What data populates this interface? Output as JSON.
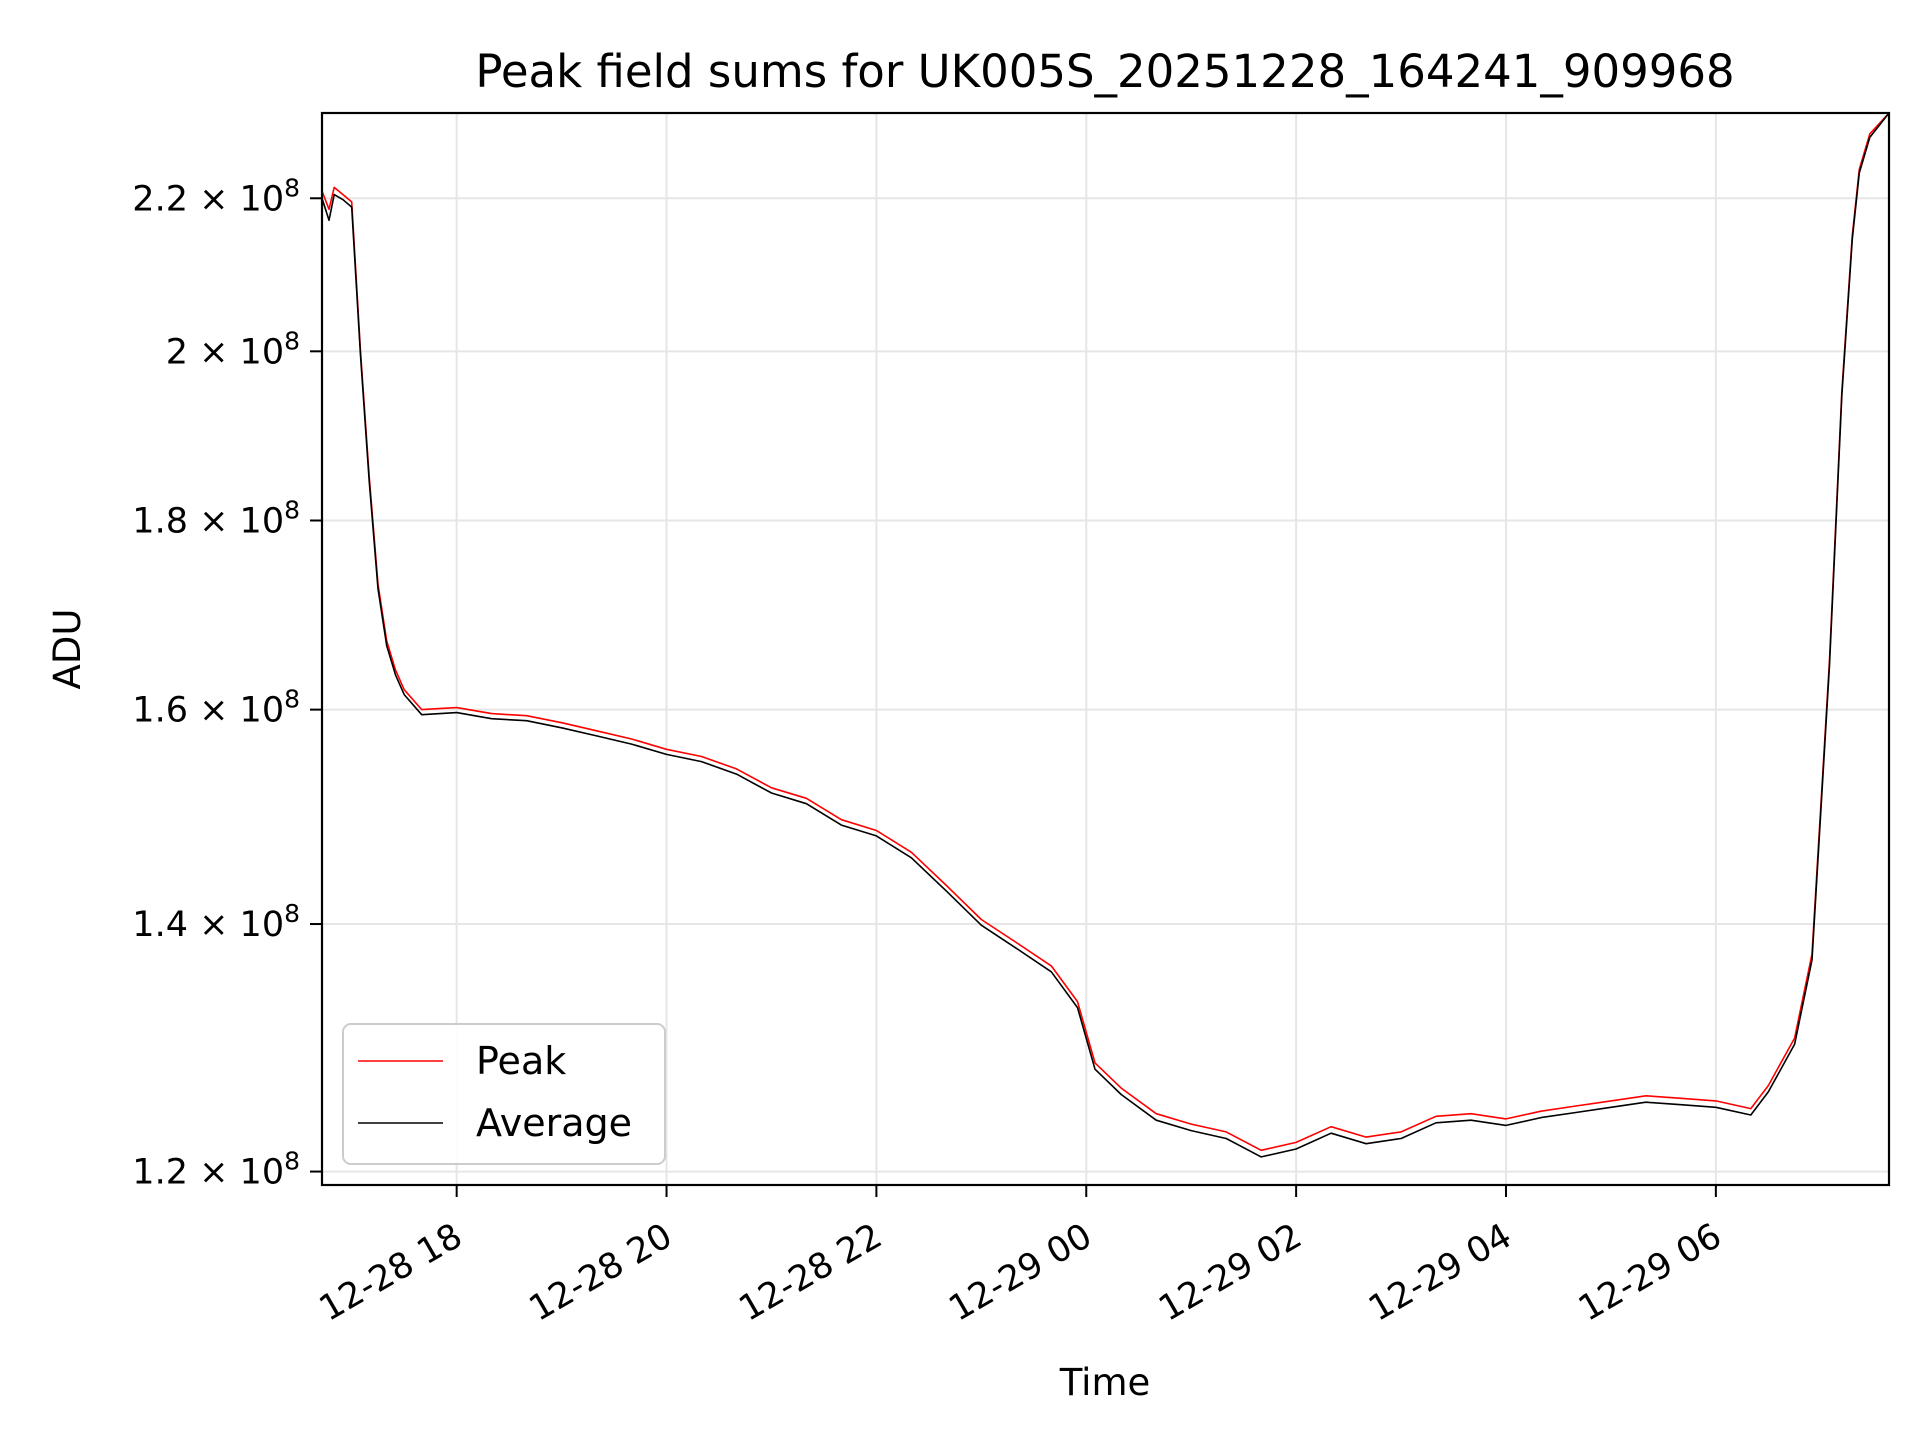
{
  "chart_data": {
    "type": "line",
    "title": "Peak field sums for UK005S_20251228_164241_909968",
    "xlabel": "Time",
    "ylabel": "ADU",
    "y_scale": "log",
    "xlim": [
      "2025-12-28 16:43",
      "2025-12-29 07:39"
    ],
    "ylim": [
      119000000,
      232000000
    ],
    "grid": true,
    "legend_position": "lower-left",
    "x_ticks": [
      {
        "value": "2025-12-28 18:00",
        "label": "12-28 18"
      },
      {
        "value": "2025-12-28 20:00",
        "label": "12-28 20"
      },
      {
        "value": "2025-12-28 22:00",
        "label": "12-28 22"
      },
      {
        "value": "2025-12-29 00:00",
        "label": "12-29 00"
      },
      {
        "value": "2025-12-29 02:00",
        "label": "12-29 02"
      },
      {
        "value": "2025-12-29 04:00",
        "label": "12-29 04"
      },
      {
        "value": "2025-12-29 06:00",
        "label": "12-29 06"
      }
    ],
    "y_ticks": [
      {
        "value": 120000000,
        "mantissa": "1.2",
        "base": "10",
        "exp": "8"
      },
      {
        "value": 140000000,
        "mantissa": "1.4",
        "base": "10",
        "exp": "8"
      },
      {
        "value": 160000000,
        "mantissa": "1.6",
        "base": "10",
        "exp": "8"
      },
      {
        "value": 180000000,
        "mantissa": "1.8",
        "base": "10",
        "exp": "8"
      },
      {
        "value": 200000000,
        "mantissa": "2",
        "base": "10",
        "exp": "8"
      },
      {
        "value": 220000000,
        "mantissa": "2.2",
        "base": "10",
        "exp": "8"
      }
    ],
    "series": [
      {
        "name": "Peak",
        "color": "#ff0000",
        "points": [
          [
            "2025-12-28 16:43",
            221000000
          ],
          [
            "2025-12-28 16:47",
            218500000
          ],
          [
            "2025-12-28 16:50",
            221500000
          ],
          [
            "2025-12-28 16:55",
            220500000
          ],
          [
            "2025-12-28 17:00",
            219500000
          ],
          [
            "2025-12-28 17:05",
            200000000
          ],
          [
            "2025-12-28 17:10",
            185000000
          ],
          [
            "2025-12-28 17:15",
            173000000
          ],
          [
            "2025-12-28 17:20",
            167000000
          ],
          [
            "2025-12-28 17:25",
            164000000
          ],
          [
            "2025-12-28 17:30",
            162000000
          ],
          [
            "2025-12-28 17:40",
            160000000
          ],
          [
            "2025-12-28 18:00",
            160200000
          ],
          [
            "2025-12-28 18:20",
            159600000
          ],
          [
            "2025-12-28 18:40",
            159400000
          ],
          [
            "2025-12-28 19:00",
            158700000
          ],
          [
            "2025-12-28 19:20",
            157900000
          ],
          [
            "2025-12-28 19:40",
            157100000
          ],
          [
            "2025-12-28 20:00",
            156100000
          ],
          [
            "2025-12-28 20:20",
            155400000
          ],
          [
            "2025-12-28 20:40",
            154200000
          ],
          [
            "2025-12-28 21:00",
            152400000
          ],
          [
            "2025-12-28 21:20",
            151400000
          ],
          [
            "2025-12-28 21:40",
            149400000
          ],
          [
            "2025-12-28 22:00",
            148400000
          ],
          [
            "2025-12-28 22:20",
            146400000
          ],
          [
            "2025-12-28 22:40",
            143400000
          ],
          [
            "2025-12-28 23:00",
            140400000
          ],
          [
            "2025-12-28 23:20",
            138400000
          ],
          [
            "2025-12-28 23:40",
            136400000
          ],
          [
            "2025-12-28 23:55",
            133400000
          ],
          [
            "2025-12-29 00:05",
            128400000
          ],
          [
            "2025-12-29 00:20",
            126400000
          ],
          [
            "2025-12-29 00:40",
            124400000
          ],
          [
            "2025-12-29 01:00",
            123600000
          ],
          [
            "2025-12-29 01:20",
            123000000
          ],
          [
            "2025-12-29 01:40",
            121600000
          ],
          [
            "2025-12-29 02:00",
            122200000
          ],
          [
            "2025-12-29 02:20",
            123400000
          ],
          [
            "2025-12-29 02:40",
            122600000
          ],
          [
            "2025-12-29 03:00",
            123000000
          ],
          [
            "2025-12-29 03:20",
            124200000
          ],
          [
            "2025-12-29 03:40",
            124400000
          ],
          [
            "2025-12-29 04:00",
            124000000
          ],
          [
            "2025-12-29 04:20",
            124600000
          ],
          [
            "2025-12-29 04:40",
            125000000
          ],
          [
            "2025-12-29 05:00",
            125400000
          ],
          [
            "2025-12-29 05:20",
            125800000
          ],
          [
            "2025-12-29 05:40",
            125600000
          ],
          [
            "2025-12-29 06:00",
            125400000
          ],
          [
            "2025-12-29 06:20",
            124800000
          ],
          [
            "2025-12-29 06:30",
            126600000
          ],
          [
            "2025-12-29 06:45",
            130400000
          ],
          [
            "2025-12-29 06:55",
            137400000
          ],
          [
            "2025-12-29 07:05",
            165000000
          ],
          [
            "2025-12-29 07:12",
            195000000
          ],
          [
            "2025-12-29 07:18",
            215000000
          ],
          [
            "2025-12-29 07:22",
            224000000
          ],
          [
            "2025-12-29 07:28",
            229000000
          ],
          [
            "2025-12-29 07:39",
            232000000
          ]
        ]
      },
      {
        "name": "Average",
        "color": "#000000",
        "points": [
          [
            "2025-12-28 16:43",
            220000000
          ],
          [
            "2025-12-28 16:47",
            217000000
          ],
          [
            "2025-12-28 16:50",
            220500000
          ],
          [
            "2025-12-28 16:55",
            219800000
          ],
          [
            "2025-12-28 17:00",
            218800000
          ],
          [
            "2025-12-28 17:05",
            199500000
          ],
          [
            "2025-12-28 17:10",
            184500000
          ],
          [
            "2025-12-28 17:15",
            172500000
          ],
          [
            "2025-12-28 17:20",
            166500000
          ],
          [
            "2025-12-28 17:25",
            163500000
          ],
          [
            "2025-12-28 17:30",
            161500000
          ],
          [
            "2025-12-28 17:40",
            159500000
          ],
          [
            "2025-12-28 18:00",
            159700000
          ],
          [
            "2025-12-28 18:20",
            159100000
          ],
          [
            "2025-12-28 18:40",
            158900000
          ],
          [
            "2025-12-28 19:00",
            158200000
          ],
          [
            "2025-12-28 19:20",
            157400000
          ],
          [
            "2025-12-28 19:40",
            156600000
          ],
          [
            "2025-12-28 20:00",
            155600000
          ],
          [
            "2025-12-28 20:20",
            154900000
          ],
          [
            "2025-12-28 20:40",
            153700000
          ],
          [
            "2025-12-28 21:00",
            151900000
          ],
          [
            "2025-12-28 21:20",
            150900000
          ],
          [
            "2025-12-28 21:40",
            148900000
          ],
          [
            "2025-12-28 22:00",
            147900000
          ],
          [
            "2025-12-28 22:20",
            145900000
          ],
          [
            "2025-12-28 22:40",
            142900000
          ],
          [
            "2025-12-28 23:00",
            139900000
          ],
          [
            "2025-12-28 23:20",
            137900000
          ],
          [
            "2025-12-28 23:40",
            135900000
          ],
          [
            "2025-12-28 23:55",
            132900000
          ],
          [
            "2025-12-29 00:05",
            127900000
          ],
          [
            "2025-12-29 00:20",
            125900000
          ],
          [
            "2025-12-29 00:40",
            123900000
          ],
          [
            "2025-12-29 01:00",
            123100000
          ],
          [
            "2025-12-29 01:20",
            122500000
          ],
          [
            "2025-12-29 01:40",
            121100000
          ],
          [
            "2025-12-29 02:00",
            121700000
          ],
          [
            "2025-12-29 02:20",
            122900000
          ],
          [
            "2025-12-29 02:40",
            122100000
          ],
          [
            "2025-12-29 03:00",
            122500000
          ],
          [
            "2025-12-29 03:20",
            123700000
          ],
          [
            "2025-12-29 03:40",
            123900000
          ],
          [
            "2025-12-29 04:00",
            123500000
          ],
          [
            "2025-12-29 04:20",
            124100000
          ],
          [
            "2025-12-29 04:40",
            124500000
          ],
          [
            "2025-12-29 05:00",
            124900000
          ],
          [
            "2025-12-29 05:20",
            125300000
          ],
          [
            "2025-12-29 05:40",
            125100000
          ],
          [
            "2025-12-29 06:00",
            124900000
          ],
          [
            "2025-12-29 06:20",
            124300000
          ],
          [
            "2025-12-29 06:30",
            126100000
          ],
          [
            "2025-12-29 06:45",
            129900000
          ],
          [
            "2025-12-29 06:55",
            136900000
          ],
          [
            "2025-12-29 07:05",
            164500000
          ],
          [
            "2025-12-29 07:12",
            194500000
          ],
          [
            "2025-12-29 07:18",
            214500000
          ],
          [
            "2025-12-29 07:22",
            223500000
          ],
          [
            "2025-12-29 07:28",
            228500000
          ],
          [
            "2025-12-29 07:39",
            232000000
          ]
        ]
      }
    ]
  }
}
